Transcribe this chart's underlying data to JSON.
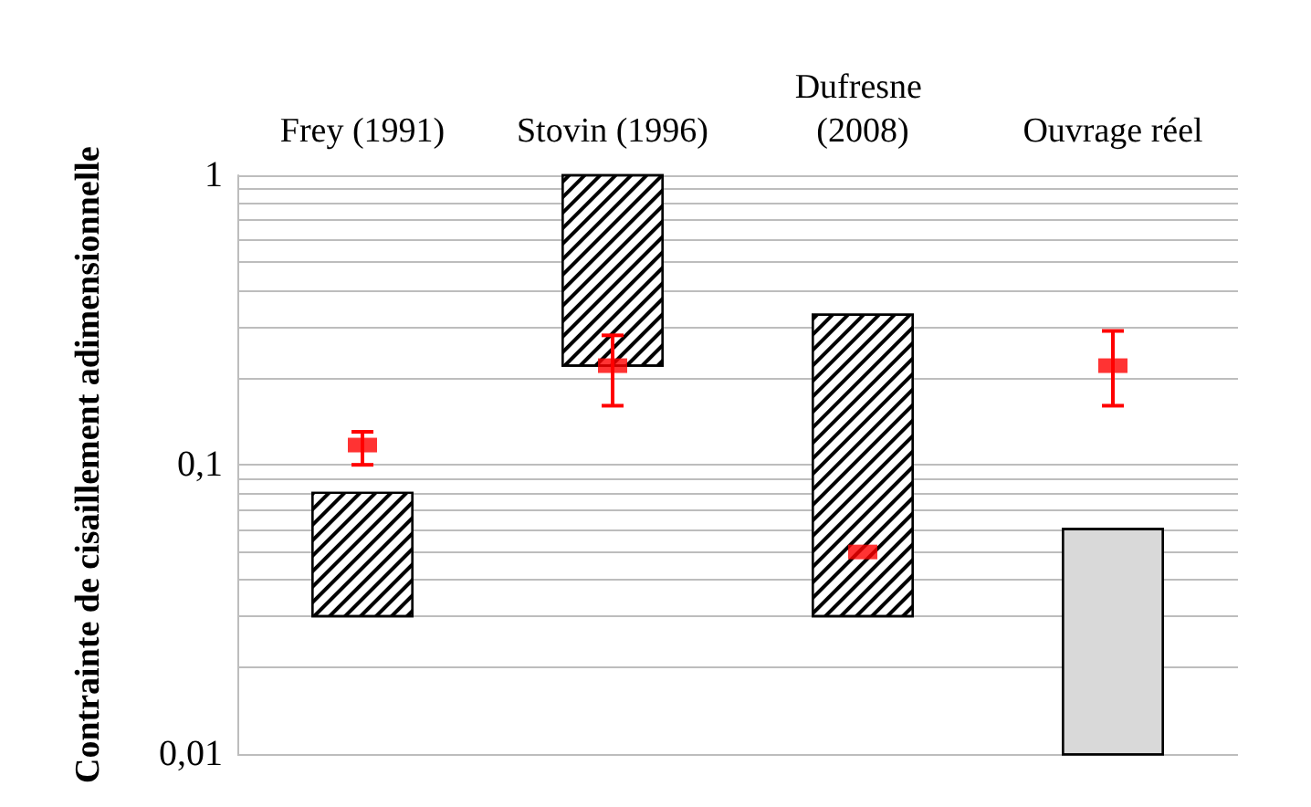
{
  "chart_data": {
    "type": "bar",
    "ylabel": "Contrainte de cisaillement adimensionnelle",
    "categories": [
      "Frey (1991)",
      "Stovin (1996)",
      "Dufresne (2008)",
      "Ouvrage réel"
    ],
    "series": [
      {
        "color": "#000000",
        "colors": [
          "#000000",
          "#000000",
          "#000000",
          "#d9d9d9"
        ],
        "base": [
          0.03,
          0.22,
          0.03,
          0.01
        ],
        "values": [
          0.05,
          0.78,
          0.3,
          0.05
        ]
      },
      {
        "type": "scatter",
        "marker": "square",
        "color": "#ff0000",
        "values": [
          0.117,
          0.22,
          0.05,
          0.22
        ],
        "errors": [
          [
            0.1,
            0.13
          ],
          [
            0.16,
            0.28
          ],
          null,
          [
            0.16,
            0.29
          ]
        ]
      }
    ],
    "log": "y",
    "ylim": [
      0.01,
      1
    ],
    "yticks": [
      {
        "value": 0.01,
        "label": "0,01"
      },
      {
        "value": 0.02,
        "label": null
      },
      {
        "value": 0.03,
        "label": null
      },
      {
        "value": 0.04,
        "label": null
      },
      {
        "value": 0.05,
        "label": null
      },
      {
        "value": 0.06,
        "label": null
      },
      {
        "value": 0.07,
        "label": null
      },
      {
        "value": 0.08,
        "label": null
      },
      {
        "value": 0.09,
        "label": null
      },
      {
        "value": 0.1,
        "label": "0,1"
      },
      {
        "value": 0.2,
        "label": null
      },
      {
        "value": 0.3,
        "label": null
      },
      {
        "value": 0.4,
        "label": null
      },
      {
        "value": 0.5,
        "label": null
      },
      {
        "value": 0.6,
        "label": null
      },
      {
        "value": 0.7,
        "label": null
      },
      {
        "value": 0.8,
        "label": null
      },
      {
        "value": 0.9,
        "label": null
      },
      {
        "value": 1,
        "label": "1"
      }
    ],
    "grid": "y"
  }
}
